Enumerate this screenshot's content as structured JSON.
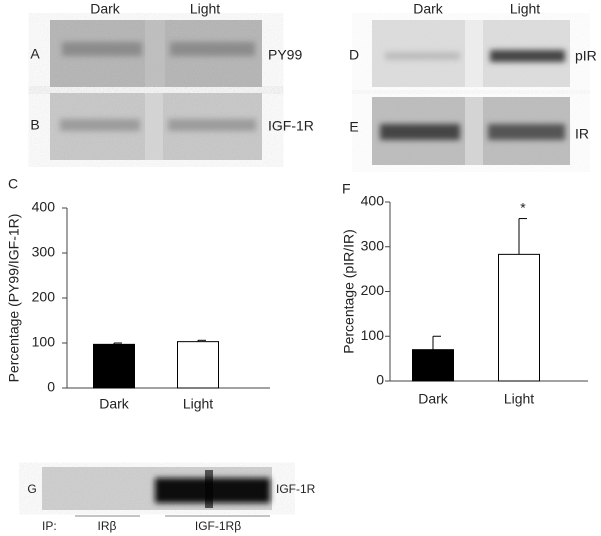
{
  "chart_data": [
    {
      "type": "bar",
      "panel": "C",
      "ylabel": "Percentage (PY99/IGF-1R)",
      "categories": [
        "Dark",
        "Light"
      ],
      "values": [
        97,
        103
      ],
      "errors": [
        3,
        3
      ],
      "colors": [
        "#000000",
        "#ffffff"
      ],
      "ylim": [
        0,
        400
      ],
      "yticks": [
        0,
        100,
        200,
        300,
        400
      ]
    },
    {
      "type": "bar",
      "panel": "F",
      "ylabel": "Percentage (pIR/IR)",
      "categories": [
        "Dark",
        "Light"
      ],
      "values": [
        70,
        283
      ],
      "errors": [
        30,
        80
      ],
      "colors": [
        "#000000",
        "#ffffff"
      ],
      "ylim": [
        0,
        400
      ],
      "yticks": [
        0,
        100,
        200,
        300,
        400
      ],
      "annotations": [
        "*"
      ]
    }
  ],
  "blots": [
    {
      "columns": [
        "Dark",
        "Light"
      ],
      "rows": [
        {
          "panel": "A",
          "label": "PY99"
        },
        {
          "panel": "B",
          "label": "IGF-1R"
        }
      ]
    },
    {
      "columns": [
        "Dark",
        "Light"
      ],
      "rows": [
        {
          "panel": "D",
          "label": "pIR"
        },
        {
          "panel": "E",
          "label": "IR"
        }
      ]
    },
    {
      "panel": "G",
      "label": "IGF-1R",
      "ip_label": "IP:",
      "ip_groups": [
        "IRβ",
        "IGF-1Rβ"
      ]
    }
  ]
}
